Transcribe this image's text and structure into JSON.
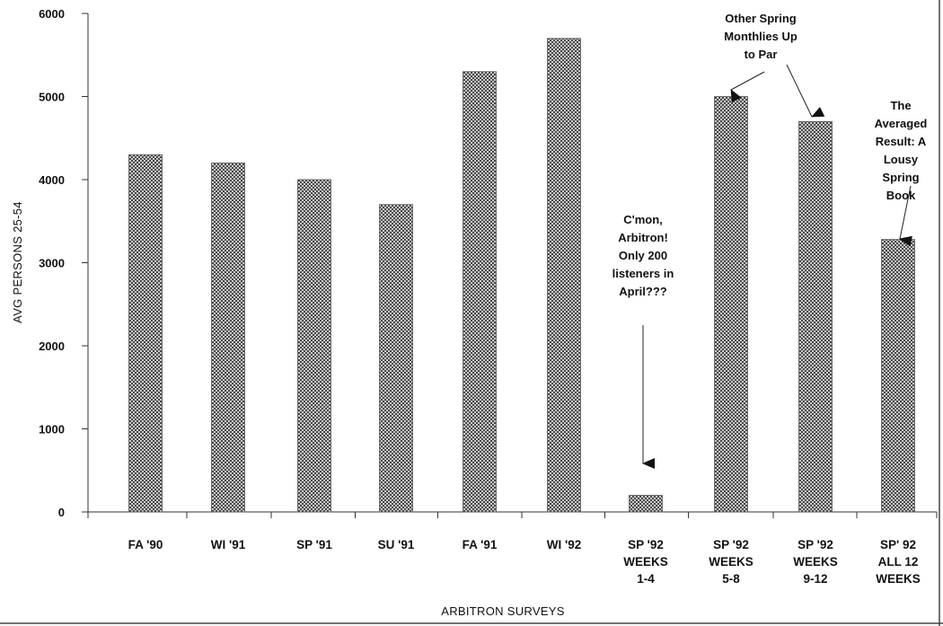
{
  "chart_data": {
    "type": "bar",
    "categories": [
      [
        "FA '90"
      ],
      [
        "WI '91"
      ],
      [
        "SP '91"
      ],
      [
        "SU '91"
      ],
      [
        "FA '91"
      ],
      [
        "WI '92"
      ],
      [
        "SP '92",
        "WEEKS",
        "1-4"
      ],
      [
        "SP '92",
        "WEEKS",
        "5-8"
      ],
      [
        "SP '92",
        "WEEKS",
        "9-12"
      ],
      [
        "SP' 92",
        "ALL 12",
        "WEEKS"
      ]
    ],
    "values": [
      4300,
      4200,
      4000,
      3700,
      5300,
      5700,
      200,
      5000,
      4700,
      3280
    ],
    "xlabel": "ARBITRON SURVEYS",
    "ylabel": "AVG PERSONS 25-54",
    "ylim": [
      0,
      6000
    ],
    "yticks": [
      0,
      1000,
      2000,
      3000,
      4000,
      5000,
      6000
    ],
    "grid": false,
    "bar_color": "#8c8c8c",
    "annotations": [
      {
        "lines": [
          "C'mon,",
          "Arbitron!",
          "Only 200",
          "listeners in",
          "April???"
        ],
        "points_to": [
          6
        ]
      },
      {
        "lines": [
          "Other Spring",
          "Monthlies Up",
          "to Par"
        ],
        "points_to": [
          7,
          8
        ]
      },
      {
        "lines": [
          "The",
          "Averaged",
          "Result:  A",
          "Lousy",
          "Spring",
          "Book"
        ],
        "points_to": [
          9
        ]
      }
    ]
  }
}
